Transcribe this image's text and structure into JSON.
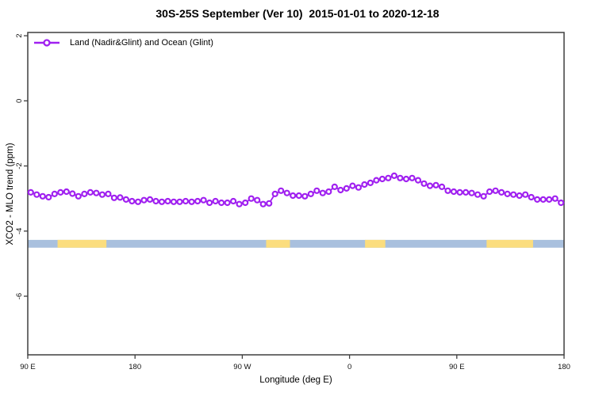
{
  "chart_data": {
    "type": "line",
    "title": "30S-25S September (Ver 10)  2015-01-01 to 2020-12-18",
    "xlabel": "Longitude (deg E)",
    "ylabel": "XCO2 - MLO trend (ppm)",
    "xlim": [
      90,
      540
    ],
    "ylim": [
      -7.8,
      2.1
    ],
    "grid": false,
    "legend_position": "top-left-inside",
    "frame_color": "#3f3f3f",
    "x_axis_note": "longitude axis wraps around the globe: 90E to 180 to 90W to 0 to 90E to 180 (450 deg span); x values are continuous axis degrees",
    "x_ticks": {
      "positions": [
        90,
        180,
        270,
        360,
        450,
        540
      ],
      "labels": [
        "90 E",
        "180",
        "90 W",
        "0",
        "90 E",
        "180"
      ]
    },
    "y_ticks": {
      "positions": [
        2,
        0,
        -2,
        -4,
        -6
      ],
      "labels": [
        "2",
        "0",
        "-2",
        "-4",
        "-6"
      ]
    },
    "series": [
      {
        "name": "Land (Nadir&Glint) and Ocean (Glint)",
        "color": "#a020f0",
        "marker": "open-circle",
        "x": [
          92.5,
          97.5,
          102.5,
          107.5,
          112.5,
          117.5,
          122.5,
          127.5,
          132.5,
          137.5,
          142.5,
          147.5,
          152.5,
          157.5,
          162.5,
          167.5,
          172.5,
          177.5,
          182.5,
          187.5,
          192.5,
          197.5,
          202.5,
          207.5,
          212.5,
          217.5,
          222.5,
          227.5,
          232.5,
          237.5,
          242.5,
          247.5,
          252.5,
          257.5,
          262.5,
          267.5,
          272.5,
          277.5,
          282.5,
          287.5,
          292.5,
          297.5,
          302.5,
          307.5,
          312.5,
          317.5,
          322.5,
          327.5,
          332.5,
          337.5,
          342.5,
          347.5,
          352.5,
          357.5,
          362.5,
          367.5,
          372.5,
          377.5,
          382.5,
          387.5,
          392.5,
          397.5,
          402.5,
          407.5,
          412.5,
          417.5,
          422.5,
          427.5,
          432.5,
          437.5,
          442.5,
          447.5,
          452.5,
          457.5,
          462.5,
          467.5,
          472.5,
          477.5,
          482.5,
          487.5,
          492.5,
          497.5,
          502.5,
          507.5,
          512.5,
          517.5,
          522.5,
          527.5,
          532.5,
          537.5
        ],
        "values": [
          -2.81,
          -2.88,
          -2.93,
          -2.96,
          -2.86,
          -2.81,
          -2.79,
          -2.85,
          -2.93,
          -2.86,
          -2.81,
          -2.83,
          -2.88,
          -2.86,
          -2.98,
          -2.97,
          -3.03,
          -3.08,
          -3.1,
          -3.05,
          -3.03,
          -3.08,
          -3.1,
          -3.08,
          -3.1,
          -3.1,
          -3.08,
          -3.1,
          -3.08,
          -3.05,
          -3.13,
          -3.08,
          -3.13,
          -3.13,
          -3.08,
          -3.17,
          -3.13,
          -3.0,
          -3.05,
          -3.17,
          -3.15,
          -2.86,
          -2.76,
          -2.83,
          -2.91,
          -2.91,
          -2.93,
          -2.86,
          -2.76,
          -2.83,
          -2.79,
          -2.64,
          -2.74,
          -2.69,
          -2.61,
          -2.66,
          -2.57,
          -2.52,
          -2.44,
          -2.4,
          -2.37,
          -2.3,
          -2.37,
          -2.4,
          -2.37,
          -2.44,
          -2.54,
          -2.61,
          -2.59,
          -2.64,
          -2.76,
          -2.79,
          -2.81,
          -2.81,
          -2.83,
          -2.88,
          -2.93,
          -2.79,
          -2.76,
          -2.81,
          -2.86,
          -2.88,
          -2.91,
          -2.88,
          -2.96,
          -3.03,
          -3.03,
          -3.03,
          -3.0,
          -3.13
        ]
      }
    ],
    "surface_band": {
      "description": "land/ocean strip along longitude",
      "ocean_color": "#a9c0de",
      "land_color": "#fbdd7e",
      "x_range": [
        90,
        540
      ],
      "y_range": [
        -4.51,
        -4.27
      ],
      "land_segments_x": [
        [
          115,
          156
        ],
        [
          290,
          310
        ],
        [
          373,
          390
        ],
        [
          475,
          514
        ]
      ]
    }
  }
}
